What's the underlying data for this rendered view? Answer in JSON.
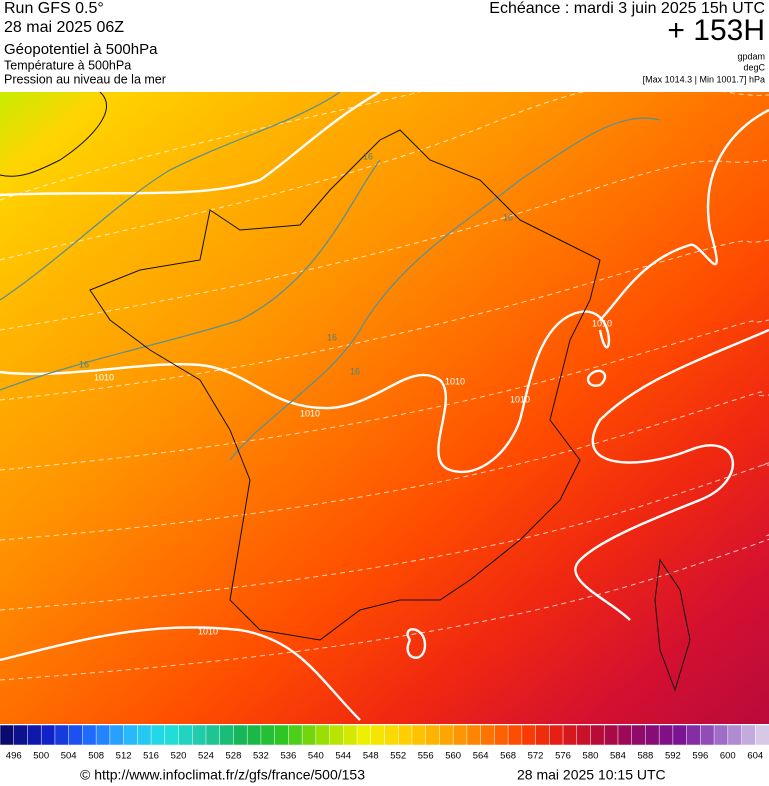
{
  "header": {
    "run": "Run GFS 0.5°",
    "date": "28 mai 2025 06Z",
    "field1": "Géopotentiel à 500hPa",
    "field2": "Température à 500hPa",
    "field3": "Pression au niveau de la mer",
    "echeance": "Echéance : mardi 3 juin 2025 15h UTC",
    "lead": "+ 153H",
    "unit1": "gpdam",
    "unit2": "degC",
    "range": "[Max 1014.3 | Min 1001.7] hPa"
  },
  "map_labels": {
    "isobars": [
      "1010",
      "1010",
      "1010",
      "1010",
      "1010",
      "1010"
    ],
    "isotherms": [
      "16",
      "16",
      "16",
      "16",
      "16"
    ]
  },
  "colorbar": {
    "labels": [
      496,
      500,
      504,
      508,
      512,
      516,
      520,
      524,
      528,
      532,
      536,
      540,
      544,
      548,
      552,
      556,
      560,
      564,
      568,
      572,
      576,
      580,
      584,
      588,
      592,
      596,
      600,
      604
    ]
  },
  "footer": {
    "url": "© http://www.infoclimat.fr/z/gfs/france/500/153",
    "timestamp": "28 mai 2025 10:15 UTC"
  }
}
